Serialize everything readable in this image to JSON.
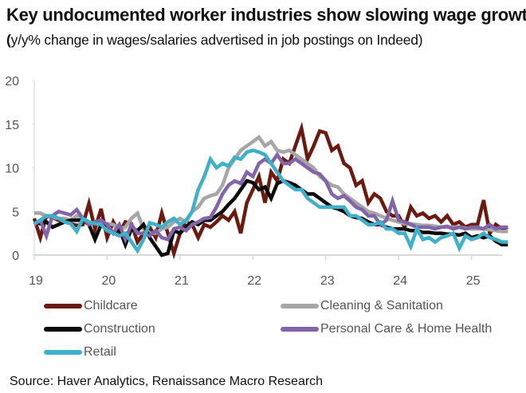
{
  "chart_data": {
    "type": "line",
    "title": "Key undocumented worker industries show slowing wage growth",
    "subtitle": "y/y% change in wages/salaries advertised in job postings on Indeed",
    "subtitle_open": "(",
    "subtitle_close": ")",
    "xlabel": "",
    "ylabel": "",
    "xlim": [
      2019.0,
      2025.42
    ],
    "ylim": [
      0,
      20
    ],
    "yticks": [
      0,
      5,
      10,
      15,
      20
    ],
    "xticks": [
      2019,
      2020,
      2021,
      2022,
      2023,
      2024,
      2025
    ],
    "xtick_labels": [
      "19",
      "20",
      "21",
      "22",
      "23",
      "24",
      "25"
    ],
    "grid": false,
    "legend_position": "bottom",
    "x_start": 2019.0,
    "x_step_months": 1,
    "series": [
      {
        "name": "Childcare",
        "color": "#6b1a10",
        "values": [
          4.2,
          2.0,
          4.5,
          4.3,
          4.0,
          3.8,
          3.6,
          3.4,
          3.5,
          5.9,
          3.0,
          5.3,
          2.0,
          3.8,
          2.5,
          3.8,
          3.6,
          1.5,
          2.5,
          3.2,
          2.0,
          4.8,
          2.5,
          0.2,
          2.5,
          3.8,
          3.5,
          2.0,
          3.5,
          3.2,
          3.8,
          4.5,
          4.0,
          5.0,
          2.5,
          6.0,
          7.5,
          9.0,
          6.0,
          9.5,
          8.5,
          11.0,
          10.5,
          12.5,
          14.5,
          11.0,
          12.5,
          14.2,
          14.0,
          12.0,
          12.5,
          10.5,
          10.0,
          8.0,
          8.5,
          6.0,
          7.0,
          6.5,
          5.0,
          4.5,
          4.5,
          3.2,
          5.5,
          4.5,
          4.8,
          4.2,
          4.5,
          3.8,
          4.5,
          3.5,
          3.8,
          3.2,
          3.5,
          3.5,
          6.3,
          2.5,
          3.5,
          3.0,
          3.2
        ]
      },
      {
        "name": "Cleaning & Sanitation",
        "color": "#a6a6a6",
        "values": [
          4.8,
          4.8,
          4.5,
          4.3,
          4.2,
          4.2,
          4.0,
          4.5,
          4.0,
          3.5,
          3.8,
          3.5,
          3.6,
          3.5,
          3.0,
          3.2,
          4.2,
          4.8,
          3.0,
          2.5,
          2.5,
          3.0,
          3.2,
          3.8,
          4.2,
          3.8,
          5.0,
          5.5,
          6.5,
          6.8,
          7.0,
          8.0,
          10.0,
          11.0,
          12.0,
          12.5,
          13.0,
          13.5,
          12.5,
          13.0,
          12.0,
          11.8,
          12.0,
          11.5,
          11.0,
          10.5,
          10.0,
          9.0,
          8.5,
          8.0,
          7.8,
          7.0,
          6.5,
          6.0,
          5.5,
          5.0,
          4.8,
          4.5,
          4.2,
          4.0,
          3.8,
          3.6,
          3.6,
          3.5,
          3.4,
          3.4,
          3.3,
          3.2,
          3.2,
          3.2,
          3.2,
          3.1,
          3.0,
          3.0,
          3.0,
          2.9,
          2.8,
          2.7,
          2.7
        ]
      },
      {
        "name": "Construction",
        "color": "#0a0a0a",
        "values": [
          3.8,
          3.6,
          3.8,
          3.2,
          3.5,
          3.8,
          4.0,
          4.0,
          4.0,
          3.5,
          1.8,
          3.5,
          3.5,
          2.5,
          3.0,
          1.2,
          3.0,
          2.8,
          3.5,
          2.0,
          1.0,
          0.0,
          0.2,
          2.8,
          2.5,
          3.2,
          3.8,
          3.5,
          4.0,
          4.0,
          4.5,
          5.0,
          5.8,
          6.5,
          7.5,
          8.5,
          8.3,
          7.5,
          7.8,
          6.5,
          8.2,
          8.5,
          8.3,
          8.0,
          7.5,
          7.0,
          7.0,
          6.5,
          6.0,
          5.5,
          5.3,
          5.0,
          4.5,
          4.3,
          4.2,
          3.8,
          3.5,
          3.5,
          3.2,
          3.0,
          3.0,
          3.0,
          2.8,
          2.8,
          2.6,
          2.6,
          2.5,
          2.5,
          2.4,
          2.4,
          2.3,
          2.5,
          2.0,
          2.2,
          2.0,
          2.2,
          1.6,
          1.2,
          1.2
        ]
      },
      {
        "name": "Personal Care & Home Health",
        "color": "#8264a8",
        "values": [
          3.5,
          4.0,
          2.2,
          4.5,
          5.0,
          4.8,
          4.6,
          5.2,
          4.2,
          3.5,
          3.8,
          4.0,
          3.5,
          2.5,
          3.5,
          1.8,
          3.5,
          2.5,
          2.5,
          2.2,
          2.8,
          2.0,
          1.8,
          3.0,
          3.2,
          2.8,
          3.5,
          3.8,
          4.2,
          4.3,
          5.5,
          7.0,
          8.0,
          8.5,
          8.2,
          9.5,
          9.0,
          10.5,
          11.0,
          10.5,
          11.5,
          10.5,
          10.5,
          11.0,
          10.5,
          10.0,
          9.5,
          9.3,
          8.5,
          7.0,
          6.5,
          6.8,
          6.2,
          5.5,
          5.2,
          4.5,
          4.5,
          3.5,
          4.0,
          6.2,
          4.0,
          3.8,
          3.5,
          3.2,
          3.2,
          3.2,
          3.0,
          3.2,
          3.3,
          3.0,
          3.2,
          3.0,
          3.2,
          3.2,
          3.0,
          3.5,
          3.0,
          3.2,
          3.2
        ]
      },
      {
        "name": "Retail",
        "color": "#3fb0c8",
        "values": [
          3.6,
          4.0,
          4.5,
          4.5,
          4.2,
          3.8,
          3.6,
          2.7,
          4.2,
          3.8,
          3.6,
          3.5,
          2.8,
          2.5,
          2.2,
          2.5,
          1.5,
          0.5,
          1.8,
          3.7,
          3.5,
          3.2,
          3.8,
          4.2,
          3.5,
          4.0,
          5.0,
          7.5,
          9.0,
          11.0,
          10.0,
          10.5,
          10.2,
          11.2,
          11.0,
          11.8,
          12.0,
          11.8,
          11.5,
          10.5,
          9.5,
          8.5,
          8.0,
          7.5,
          7.5,
          6.5,
          6.0,
          5.5,
          5.5,
          5.5,
          5.5,
          5.5,
          4.5,
          4.5,
          4.0,
          3.5,
          3.5,
          3.8,
          3.0,
          3.0,
          2.5,
          2.5,
          1.0,
          3.0,
          1.8,
          2.0,
          1.5,
          2.0,
          2.2,
          2.5,
          0.8,
          2.2,
          1.8,
          2.0,
          2.5,
          2.0,
          1.8,
          1.5,
          1.5
        ]
      }
    ],
    "source": "Source: Haver Analytics, Renaissance Macro Research"
  }
}
